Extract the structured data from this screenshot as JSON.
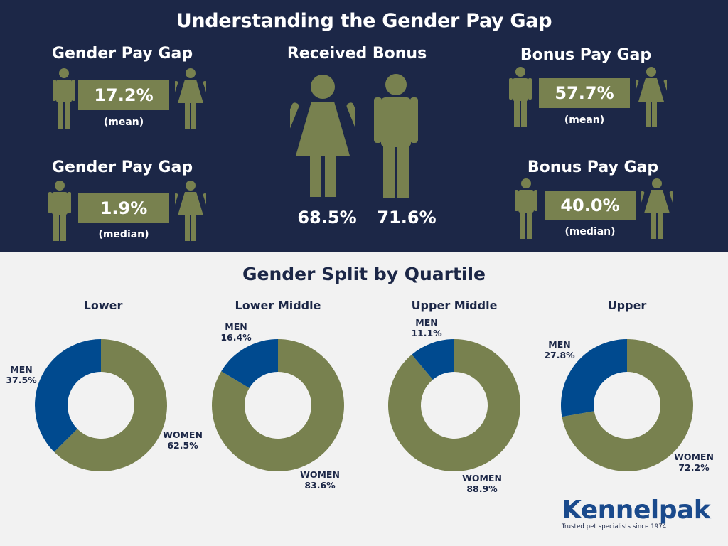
{
  "header": {
    "title": "Understanding the Gender Pay Gap"
  },
  "stats": {
    "pay_gap_mean": {
      "title": "Gender Pay Gap",
      "value": "17.2%",
      "sub": "(mean)"
    },
    "pay_gap_median": {
      "title": "Gender Pay Gap",
      "value": "1.9%",
      "sub": "(median)"
    },
    "bonus_gap_mean": {
      "title": "Bonus Pay Gap",
      "value": "57.7%",
      "sub": "(mean)"
    },
    "bonus_gap_median": {
      "title": "Bonus Pay Gap",
      "value": "40.0%",
      "sub": "(median)"
    },
    "received_bonus": {
      "title": "Received Bonus",
      "women": "68.5%",
      "men": "71.6%"
    }
  },
  "colors": {
    "navy": "#1c2747",
    "olive": "#78814f",
    "blue": "#004a8f",
    "white": "#ffffff"
  },
  "icons": [
    "male-figure-icon",
    "female-figure-icon"
  ],
  "chart_data": {
    "type": "pie",
    "title": "Gender Split by Quartile",
    "charts": [
      {
        "name": "Lower",
        "men_label": "MEN",
        "men_value": "37.5%",
        "men": 37.5,
        "women_label": "WOMEN",
        "women_value": "62.5%",
        "women": 62.5
      },
      {
        "name": "Lower Middle",
        "men_label": "MEN",
        "men_value": "16.4%",
        "men": 16.4,
        "women_label": "WOMEN",
        "women_value": "83.6%",
        "women": 83.6
      },
      {
        "name": "Upper Middle",
        "men_label": "MEN",
        "men_value": "11.1%",
        "men": 11.1,
        "women_label": "WOMEN",
        "women_value": "88.9%",
        "women": 88.9
      },
      {
        "name": "Upper",
        "men_label": "MEN",
        "men_value": "27.8%",
        "men": 27.8,
        "women_label": "WOMEN",
        "women_value": "72.2%",
        "women": 72.2
      }
    ]
  },
  "footer": {
    "brand": "Kennelpak",
    "tagline": "Trusted pet specialists since 1974"
  }
}
